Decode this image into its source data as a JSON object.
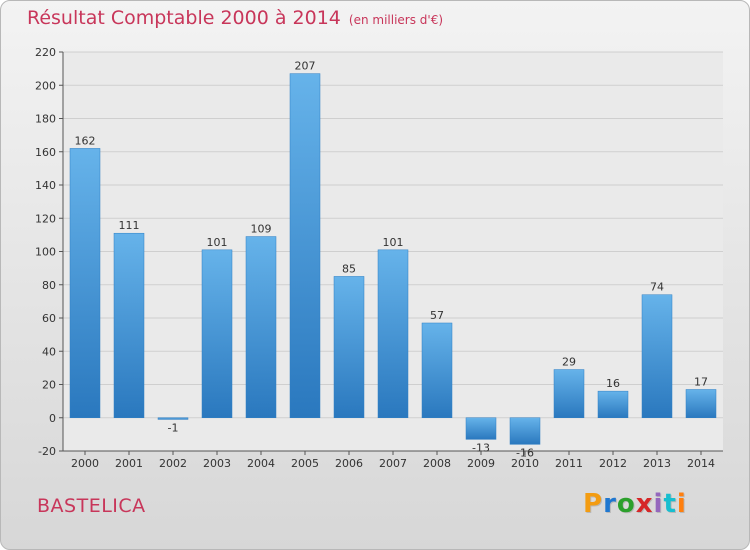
{
  "header": {
    "title": "Résultat Comptable 2000 à 2014",
    "subtitle": "(en milliers d'€)"
  },
  "footer": {
    "commune": "BASTELICA",
    "logo": "Proxiti",
    "logo_colors": [
      "#f39c12",
      "#1f77d0",
      "#2ca02c",
      "#d62728",
      "#9467bd",
      "#17becf",
      "#ff7f0e"
    ]
  },
  "colors": {
    "bar_top": "#66b3ea",
    "bar_bottom": "#2a78be",
    "title": "#c8365a"
  },
  "chart_data": {
    "type": "bar",
    "title": "Résultat Comptable 2000 à 2014",
    "subtitle": "(en milliers d'€)",
    "categories": [
      "2000",
      "2001",
      "2002",
      "2003",
      "2004",
      "2005",
      "2006",
      "2007",
      "2008",
      "2009",
      "2010",
      "2011",
      "2012",
      "2013",
      "2014"
    ],
    "values": [
      162,
      111,
      -1,
      101,
      109,
      207,
      85,
      101,
      57,
      -13,
      -16,
      29,
      16,
      74,
      17
    ],
    "ylim": [
      -20,
      220
    ],
    "yticks": [
      -20,
      0,
      20,
      40,
      60,
      80,
      100,
      120,
      140,
      160,
      180,
      200,
      220
    ],
    "grid": true,
    "legend": "none"
  }
}
